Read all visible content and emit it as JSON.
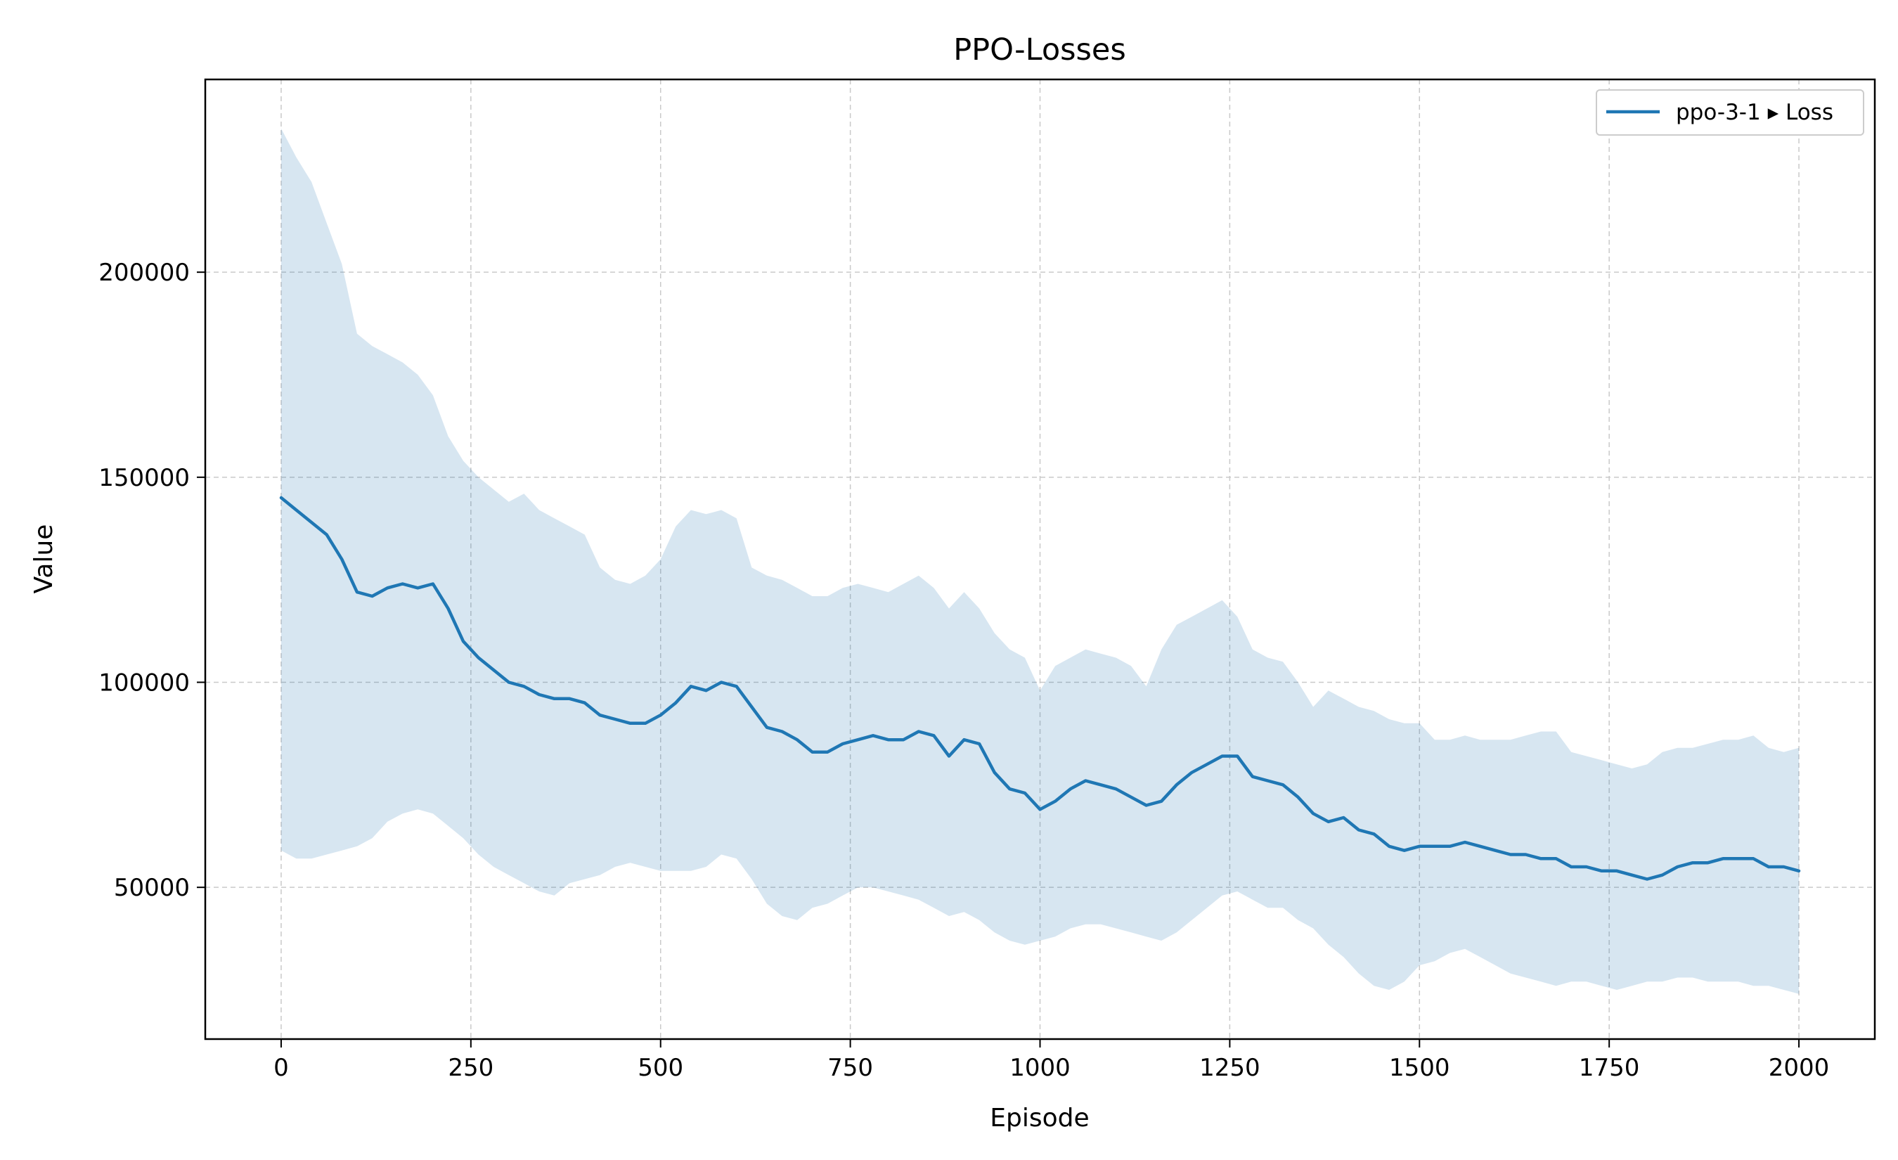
{
  "chart_data": {
    "type": "line",
    "title": "PPO-Losses",
    "xlabel": "Episode",
    "ylabel": "Value",
    "xlim": [
      -100,
      2100
    ],
    "ylim": [
      13000,
      247000
    ],
    "xticks": [
      0,
      250,
      500,
      750,
      1000,
      1250,
      1500,
      1750,
      2000
    ],
    "yticks": [
      50000,
      100000,
      150000,
      200000
    ],
    "grid": true,
    "legend_position": "top-right",
    "colors": {
      "line": "#1f77b4",
      "band": "#1f77b4"
    },
    "series": [
      {
        "name": "ppo-3-1 ▸ Loss",
        "x": [
          0,
          20,
          40,
          60,
          80,
          100,
          120,
          140,
          160,
          180,
          200,
          220,
          240,
          260,
          280,
          300,
          320,
          340,
          360,
          380,
          400,
          420,
          440,
          460,
          480,
          500,
          520,
          540,
          560,
          580,
          600,
          620,
          640,
          660,
          680,
          700,
          720,
          740,
          760,
          780,
          800,
          820,
          840,
          860,
          880,
          900,
          920,
          940,
          960,
          980,
          1000,
          1020,
          1040,
          1060,
          1080,
          1100,
          1120,
          1140,
          1160,
          1180,
          1200,
          1220,
          1240,
          1260,
          1280,
          1300,
          1320,
          1340,
          1360,
          1380,
          1400,
          1420,
          1440,
          1460,
          1480,
          1500,
          1520,
          1540,
          1560,
          1580,
          1600,
          1620,
          1640,
          1660,
          1680,
          1700,
          1720,
          1740,
          1760,
          1780,
          1800,
          1820,
          1840,
          1860,
          1880,
          1900,
          1920,
          1940,
          1960,
          1980,
          2000
        ],
        "mean": [
          145000,
          142000,
          139000,
          136000,
          130000,
          122000,
          121000,
          123000,
          124000,
          123000,
          124000,
          118000,
          110000,
          106000,
          103000,
          100000,
          99000,
          97000,
          96000,
          96000,
          95000,
          92000,
          91000,
          90000,
          90000,
          92000,
          95000,
          99000,
          98000,
          100000,
          99000,
          94000,
          89000,
          88000,
          86000,
          83000,
          83000,
          85000,
          86000,
          87000,
          86000,
          86000,
          88000,
          87000,
          82000,
          86000,
          85000,
          78000,
          74000,
          73000,
          69000,
          71000,
          74000,
          76000,
          75000,
          74000,
          72000,
          70000,
          71000,
          75000,
          78000,
          80000,
          82000,
          82000,
          77000,
          76000,
          75000,
          72000,
          68000,
          66000,
          67000,
          64000,
          63000,
          60000,
          59000,
          60000,
          60000,
          60000,
          61000,
          60000,
          59000,
          58000,
          58000,
          57000,
          57000,
          55000,
          55000,
          54000,
          54000,
          53000,
          52000,
          53000,
          55000,
          56000,
          56000,
          57000,
          57000,
          57000,
          55000,
          55000,
          54000
        ],
        "upper": [
          235000,
          228000,
          222000,
          212000,
          202000,
          185000,
          182000,
          180000,
          178000,
          175000,
          170000,
          160000,
          154000,
          150000,
          147000,
          144000,
          146000,
          142000,
          140000,
          138000,
          136000,
          128000,
          125000,
          124000,
          126000,
          130000,
          138000,
          142000,
          141000,
          142000,
          140000,
          128000,
          126000,
          125000,
          123000,
          121000,
          121000,
          123000,
          124000,
          123000,
          122000,
          124000,
          126000,
          123000,
          118000,
          122000,
          118000,
          112000,
          108000,
          106000,
          98000,
          104000,
          106000,
          108000,
          107000,
          106000,
          104000,
          99000,
          108000,
          114000,
          116000,
          118000,
          120000,
          116000,
          108000,
          106000,
          105000,
          100000,
          94000,
          98000,
          96000,
          94000,
          93000,
          91000,
          90000,
          90000,
          86000,
          86000,
          87000,
          86000,
          86000,
          86000,
          87000,
          88000,
          88000,
          83000,
          82000,
          81000,
          80000,
          79000,
          80000,
          83000,
          84000,
          84000,
          85000,
          86000,
          86000,
          87000,
          84000,
          83000,
          84000
        ],
        "lower": [
          59000,
          57000,
          57000,
          58000,
          59000,
          60000,
          62000,
          66000,
          68000,
          69000,
          68000,
          65000,
          62000,
          58000,
          55000,
          53000,
          51000,
          49000,
          48000,
          51000,
          52000,
          53000,
          55000,
          56000,
          55000,
          54000,
          54000,
          54000,
          55000,
          58000,
          57000,
          52000,
          46000,
          43000,
          42000,
          45000,
          46000,
          48000,
          50000,
          50000,
          49000,
          48000,
          47000,
          45000,
          43000,
          44000,
          42000,
          39000,
          37000,
          36000,
          37000,
          38000,
          40000,
          41000,
          41000,
          40000,
          39000,
          38000,
          37000,
          39000,
          42000,
          45000,
          48000,
          49000,
          47000,
          45000,
          45000,
          42000,
          40000,
          36000,
          33000,
          29000,
          26000,
          25000,
          27000,
          31000,
          32000,
          34000,
          35000,
          33000,
          31000,
          29000,
          28000,
          27000,
          26000,
          27000,
          27000,
          26000,
          25000,
          26000,
          27000,
          27000,
          28000,
          28000,
          27000,
          27000,
          27000,
          26000,
          26000,
          25000,
          24000
        ]
      }
    ]
  }
}
